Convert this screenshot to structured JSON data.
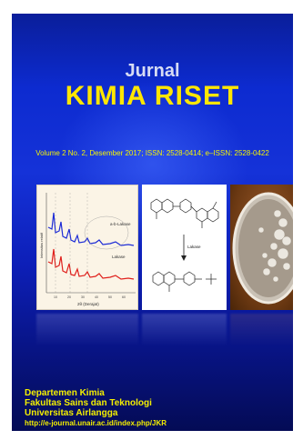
{
  "header": {
    "jurnal": "Jurnal",
    "title": "KIMIA RISET",
    "volume_line": "Volume 2 No. 2, Desember 2017;  ISSN: 2528-0414; e–ISSN: 2528-0422"
  },
  "figures": {
    "xrd_axis_label": "2θ (Derajat)",
    "xrd_y_label": "Intensitas relatif",
    "series_labels": [
      "a-b-Lakase",
      "Lakase"
    ],
    "tick_labels": [
      "10",
      "20",
      "30",
      "40",
      "50",
      "60"
    ],
    "reaction_arrow_label": "Lakase"
  },
  "footer": {
    "line1": "Departemen Kimia",
    "line2": "Fakultas Sains dan Teknologi",
    "line3": "Universitas Airlangga",
    "url": "http://e-journal.unair.ac.id/index.php/JKR"
  },
  "colors": {
    "background": "#0d2bd0",
    "title": "#ffe600",
    "footer_text": "#f4ef00"
  }
}
